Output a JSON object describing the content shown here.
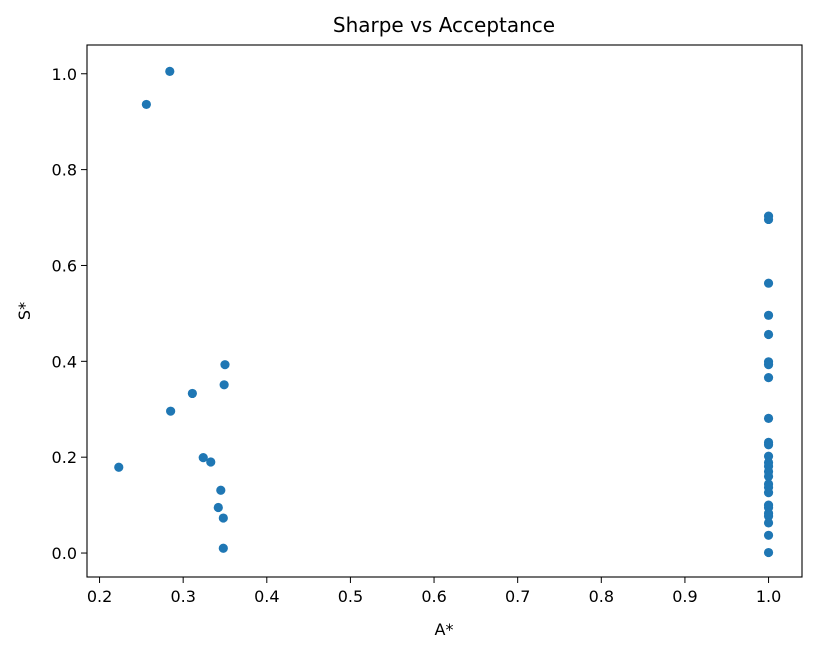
{
  "chart_data": {
    "type": "scatter",
    "title": "Sharpe vs Acceptance",
    "xlabel": "A*",
    "ylabel": "S*",
    "xlim": [
      0.185,
      1.04
    ],
    "ylim": [
      -0.05,
      1.06
    ],
    "xticks": [
      0.2,
      0.3,
      0.4,
      0.5,
      0.6,
      0.7,
      0.8,
      0.9,
      1.0
    ],
    "xtick_labels": [
      "0.2",
      "0.3",
      "0.4",
      "0.5",
      "0.6",
      "0.7",
      "0.8",
      "0.9",
      "1.0"
    ],
    "yticks": [
      0.0,
      0.2,
      0.4,
      0.6,
      0.8,
      1.0
    ],
    "ytick_labels": [
      "0.0",
      "0.2",
      "0.4",
      "0.6",
      "0.8",
      "1.0"
    ],
    "grid": false,
    "legend": "none",
    "marker_color": "#1f77b4",
    "points": [
      {
        "x": 0.284,
        "y": 1.005
      },
      {
        "x": 0.256,
        "y": 0.936
      },
      {
        "x": 0.35,
        "y": 0.393
      },
      {
        "x": 0.349,
        "y": 0.351
      },
      {
        "x": 0.311,
        "y": 0.333
      },
      {
        "x": 0.285,
        "y": 0.296
      },
      {
        "x": 0.324,
        "y": 0.199
      },
      {
        "x": 0.333,
        "y": 0.19
      },
      {
        "x": 0.223,
        "y": 0.179
      },
      {
        "x": 0.345,
        "y": 0.131
      },
      {
        "x": 0.342,
        "y": 0.095
      },
      {
        "x": 0.348,
        "y": 0.073
      },
      {
        "x": 0.348,
        "y": 0.01
      },
      {
        "x": 1.0,
        "y": 0.703
      },
      {
        "x": 1.0,
        "y": 0.696
      },
      {
        "x": 1.0,
        "y": 0.563
      },
      {
        "x": 1.0,
        "y": 0.496
      },
      {
        "x": 1.0,
        "y": 0.456
      },
      {
        "x": 1.0,
        "y": 0.399
      },
      {
        "x": 1.0,
        "y": 0.393
      },
      {
        "x": 1.0,
        "y": 0.366
      },
      {
        "x": 1.0,
        "y": 0.281
      },
      {
        "x": 1.0,
        "y": 0.231
      },
      {
        "x": 1.0,
        "y": 0.226
      },
      {
        "x": 1.0,
        "y": 0.202
      },
      {
        "x": 1.0,
        "y": 0.189
      },
      {
        "x": 1.0,
        "y": 0.181
      },
      {
        "x": 1.0,
        "y": 0.17
      },
      {
        "x": 1.0,
        "y": 0.16
      },
      {
        "x": 1.0,
        "y": 0.144
      },
      {
        "x": 1.0,
        "y": 0.137
      },
      {
        "x": 1.0,
        "y": 0.126
      },
      {
        "x": 1.0,
        "y": 0.1
      },
      {
        "x": 1.0,
        "y": 0.095
      },
      {
        "x": 1.0,
        "y": 0.083
      },
      {
        "x": 1.0,
        "y": 0.077
      },
      {
        "x": 1.0,
        "y": 0.063
      },
      {
        "x": 1.0,
        "y": 0.037
      },
      {
        "x": 1.0,
        "y": 0.001
      }
    ]
  }
}
